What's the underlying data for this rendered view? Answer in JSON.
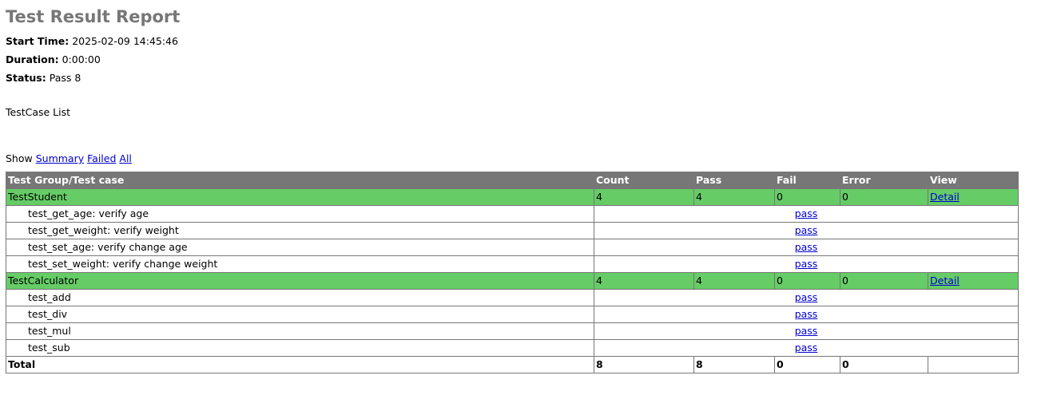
{
  "title": "Test Result Report",
  "attributes": [
    {
      "label": "Start Time:",
      "value": "2025-02-09 14:45:46"
    },
    {
      "label": "Duration:",
      "value": "0:00:00"
    },
    {
      "label": "Status:",
      "value": "Pass 8"
    }
  ],
  "description": "TestCase List",
  "show": {
    "label": "Show",
    "links": [
      "Summary",
      "Failed",
      "All"
    ]
  },
  "table": {
    "headers": [
      "Test Group/Test case",
      "Count",
      "Pass",
      "Fail",
      "Error",
      "View"
    ],
    "groups": [
      {
        "name": "TestStudent",
        "count": "4",
        "pass": "4",
        "fail": "0",
        "error": "0",
        "view": "Detail",
        "cases": [
          {
            "name": "test_get_age: verify age",
            "result": "pass"
          },
          {
            "name": "test_get_weight: verify weight",
            "result": "pass"
          },
          {
            "name": "test_set_age: verify change age",
            "result": "pass"
          },
          {
            "name": "test_set_weight: verify change weight",
            "result": "pass"
          }
        ]
      },
      {
        "name": "TestCalculator",
        "count": "4",
        "pass": "4",
        "fail": "0",
        "error": "0",
        "view": "Detail",
        "cases": [
          {
            "name": "test_add",
            "result": "pass"
          },
          {
            "name": "test_div",
            "result": "pass"
          },
          {
            "name": "test_mul",
            "result": "pass"
          },
          {
            "name": "test_sub",
            "result": "pass"
          }
        ]
      }
    ],
    "total": {
      "label": "Total",
      "count": "8",
      "pass": "8",
      "fail": "0",
      "error": "0"
    }
  },
  "colors": {
    "header_bg": "#777777",
    "pass_group_bg": "#66cc66",
    "link": "#0000cc"
  }
}
